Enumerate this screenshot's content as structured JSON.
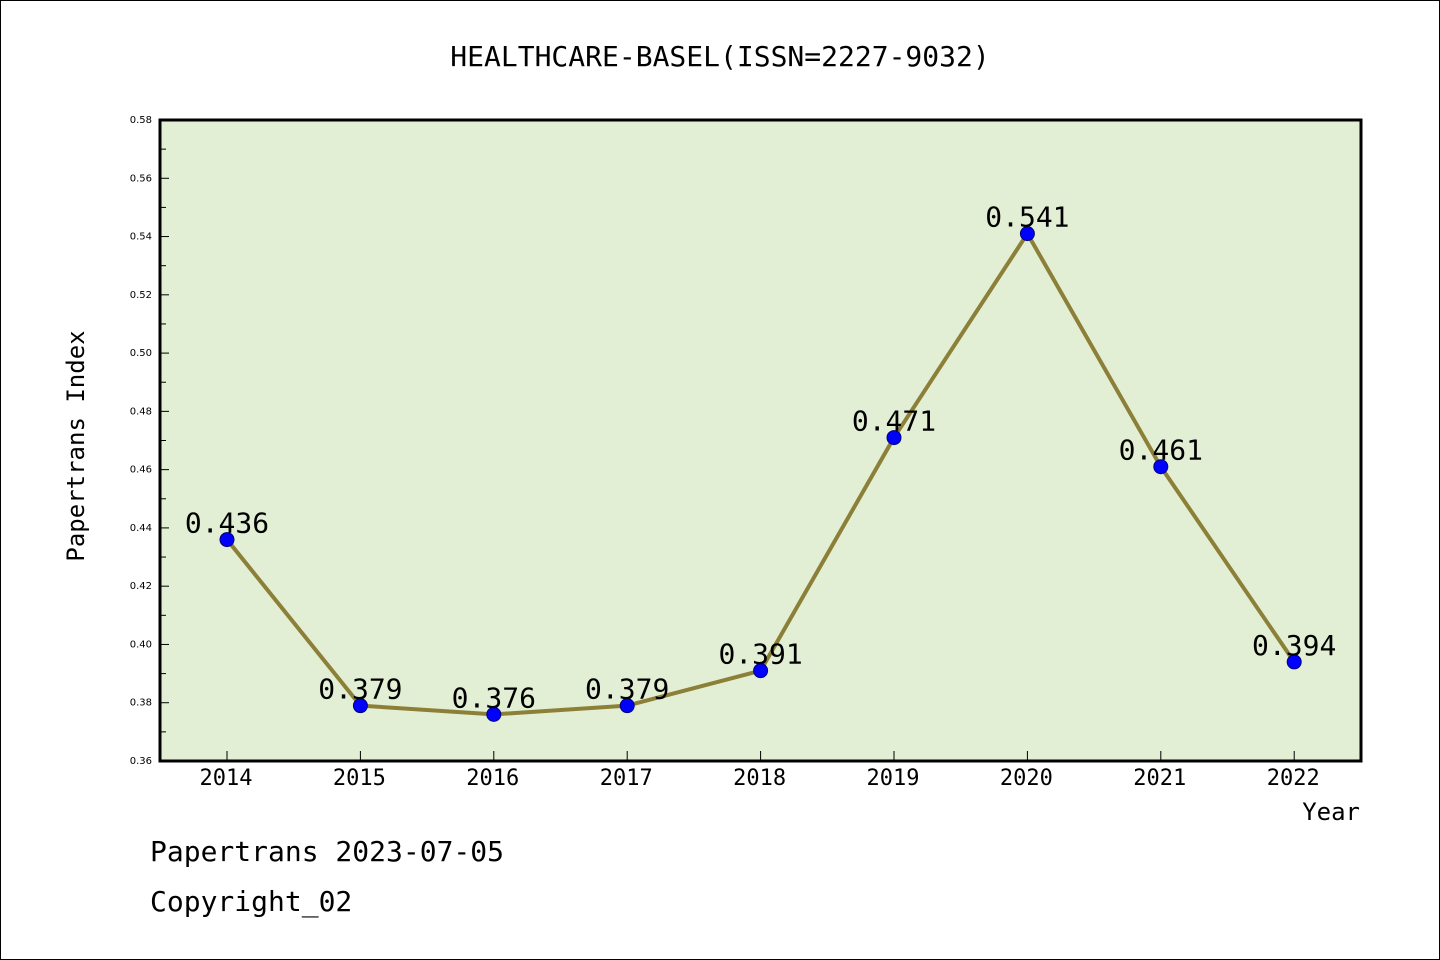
{
  "colors": {
    "plot_background": "#e2efd4",
    "line": "#8c7f37",
    "marker_fill": "#0000ff",
    "marker_edge": "#00007a",
    "text": "#000000"
  },
  "chart_data": {
    "type": "line",
    "title": "HEALTHCARE-BASEL(ISSN=2227-9032)",
    "xlabel": "Year",
    "ylabel": "Papertrans Index",
    "categories": [
      "2014",
      "2015",
      "2016",
      "2017",
      "2018",
      "2019",
      "2020",
      "2021",
      "2022"
    ],
    "values": [
      0.436,
      0.379,
      0.376,
      0.379,
      0.391,
      0.471,
      0.541,
      0.461,
      0.394
    ],
    "value_labels": [
      "0.436",
      "0.379",
      "0.376",
      "0.379",
      "0.391",
      "0.471",
      "0.541",
      "0.461",
      "0.394"
    ],
    "ylim": [
      0.36,
      0.58
    ],
    "yticks": [
      "0.36",
      "0.38",
      "0.40",
      "0.42",
      "0.44",
      "0.46",
      "0.48",
      "0.50",
      "0.52",
      "0.54",
      "0.56",
      "0.58"
    ],
    "grid": false,
    "legend": "none"
  },
  "footer": {
    "date_line": "Papertrans 2023-07-05",
    "copyright_line": "Copyright_02"
  }
}
